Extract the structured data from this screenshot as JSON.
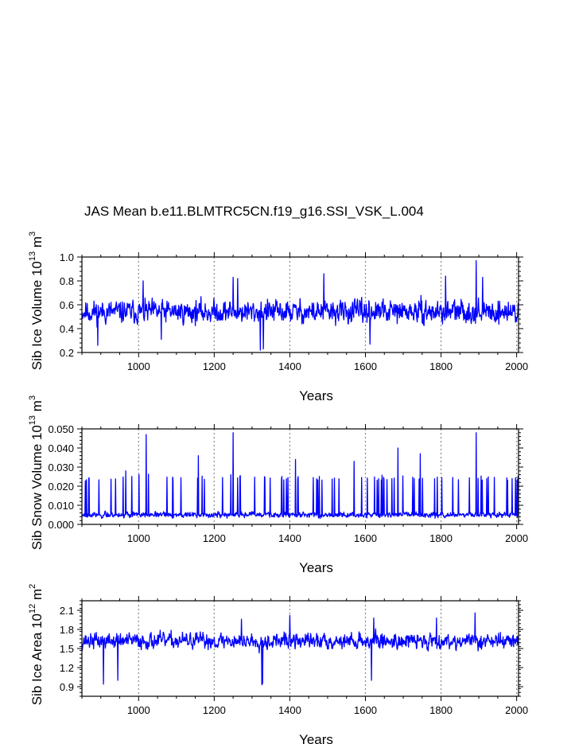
{
  "title": "JAS Mean b.e11.BLMTRC5CN.f19_g16.SSI_VSK_L.004",
  "colors": {
    "series": "#0000ff",
    "axis": "#000000",
    "refline": "#888888"
  },
  "chart_data": [
    {
      "type": "line",
      "id": "ice-volume",
      "xlabel": "Years",
      "ylabel_parts": [
        "Sib Ice Volume 10",
        "13",
        " m",
        "3"
      ],
      "xlim": [
        850,
        2005
      ],
      "ylim": [
        0.2,
        1.0
      ],
      "xticks": [
        1000,
        1200,
        1400,
        1600,
        1800,
        2000
      ],
      "yticks": [
        0.2,
        0.4,
        0.6,
        0.8,
        1.0
      ],
      "ytick_labels": [
        "0.2",
        "0.4",
        "0.6",
        "0.8",
        "1.0"
      ],
      "ref_lines_x": [
        1000,
        1200,
        1400,
        1600,
        1800,
        2000
      ],
      "series_model": {
        "mean": 0.54,
        "amp": 0.13,
        "min": 0.22,
        "max": 0.97,
        "seed": 11
      },
      "peaks": [
        [
          1012,
          0.8
        ],
        [
          1250,
          0.83
        ],
        [
          1262,
          0.82
        ],
        [
          1490,
          0.86
        ],
        [
          1812,
          0.84
        ],
        [
          1893,
          0.97
        ],
        [
          1910,
          0.83
        ],
        [
          1322,
          0.22
        ],
        [
          1330,
          0.23
        ],
        [
          1060,
          0.31
        ],
        [
          892,
          0.26
        ],
        [
          1612,
          0.27
        ]
      ]
    },
    {
      "type": "line",
      "id": "snow-volume",
      "xlabel": "Years",
      "ylabel_parts": [
        "Sib Snow Volume 10",
        "13",
        " m",
        "3"
      ],
      "xlim": [
        850,
        2005
      ],
      "ylim": [
        0.0,
        0.05
      ],
      "xticks": [
        1000,
        1200,
        1400,
        1600,
        1800,
        2000
      ],
      "yticks": [
        0.0,
        0.01,
        0.02,
        0.03,
        0.04,
        0.05
      ],
      "ytick_labels": [
        "0.000",
        "0.010",
        "0.020",
        "0.030",
        "0.040",
        "0.050"
      ],
      "ref_lines_x": [
        1000,
        1200,
        1400,
        1600,
        1800,
        2000
      ],
      "series_model": {
        "mean": 0.005,
        "amp": 0.004,
        "min": 0.0,
        "max": 0.048,
        "seed": 23,
        "skew": true
      },
      "peaks": [
        [
          1020,
          0.047
        ],
        [
          1158,
          0.036
        ],
        [
          1250,
          0.048
        ],
        [
          1415,
          0.034
        ],
        [
          1570,
          0.033
        ],
        [
          1686,
          0.04
        ],
        [
          1745,
          0.037
        ],
        [
          1893,
          0.048
        ],
        [
          966,
          0.028
        ],
        [
          1988,
          0.024
        ]
      ]
    },
    {
      "type": "line",
      "id": "ice-area",
      "xlabel": "Years",
      "ylabel_parts": [
        "Sib Ice Area 10",
        "12",
        " m",
        "2"
      ],
      "xlim": [
        850,
        2005
      ],
      "ylim": [
        0.75,
        2.25
      ],
      "xticks": [
        1000,
        1200,
        1400,
        1600,
        1800,
        2000
      ],
      "yticks": [
        0.9,
        1.2,
        1.5,
        1.8,
        2.1
      ],
      "ytick_labels": [
        "0.9",
        "1.2",
        "1.5",
        "1.8",
        "2.1"
      ],
      "ref_lines_x": [
        1000,
        1200,
        1400,
        1600,
        1800,
        2000
      ],
      "series_model": {
        "mean": 1.62,
        "amp": 0.17,
        "min": 0.93,
        "max": 2.06,
        "seed": 37
      },
      "peaks": [
        [
          1326,
          0.93
        ],
        [
          1328,
          0.95
        ],
        [
          907,
          0.94
        ],
        [
          1616,
          1.0
        ],
        [
          945,
          1.0
        ],
        [
          1890,
          2.06
        ],
        [
          1788,
          1.98
        ],
        [
          1622,
          1.98
        ],
        [
          1400,
          2.02
        ],
        [
          1272,
          1.96
        ]
      ]
    }
  ]
}
